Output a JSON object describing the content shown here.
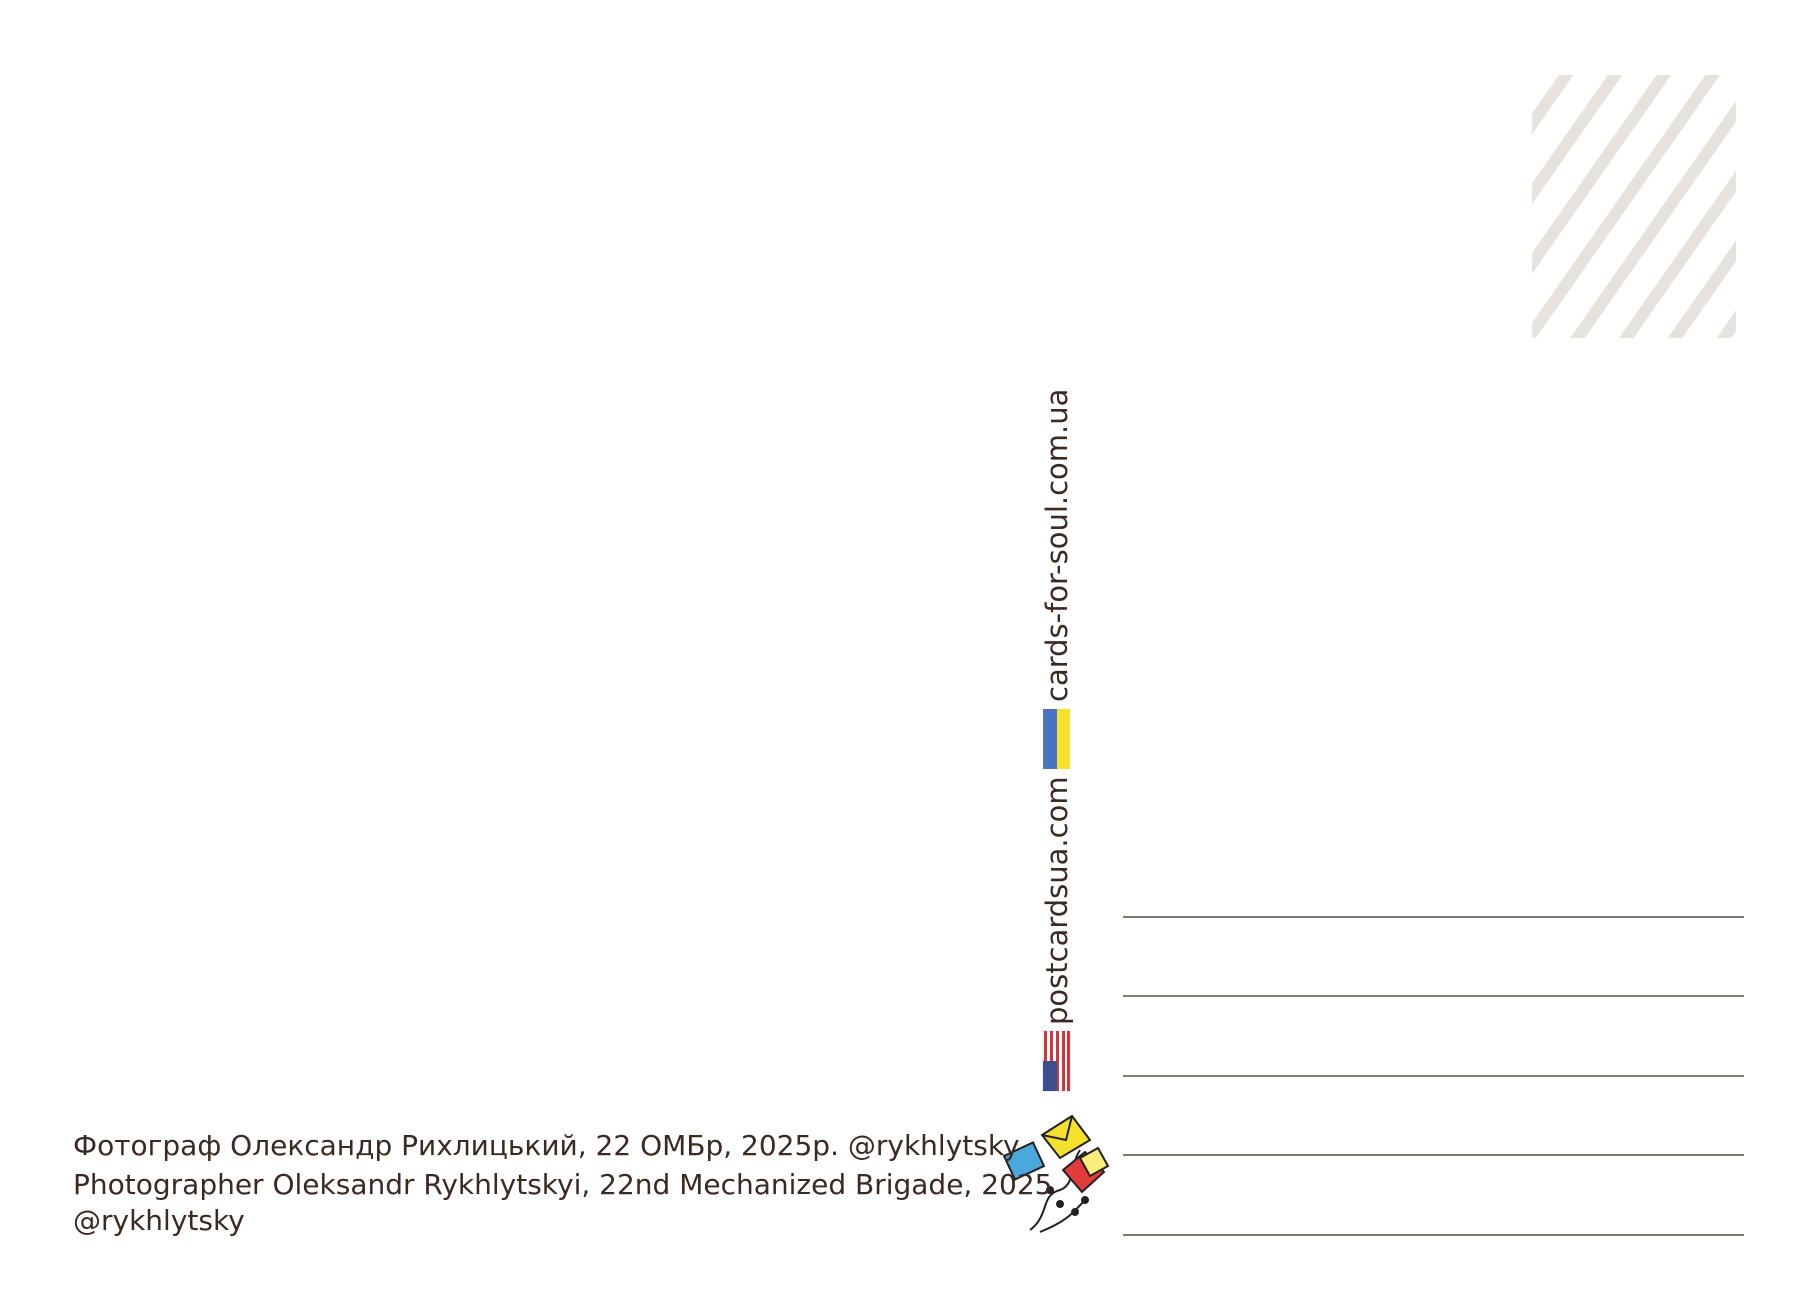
{
  "credits": [
    "Фотограф Олександр Рихлицький, 22 ОМБр, 2025р. @rykhlytsky",
    "Photographer Oleksandr Rykhlytskyi, 22nd Mechanized Brigade, 2025",
    "@rykhlytsky"
  ],
  "websites": [
    "cards-for-soul.com.ua",
    "postcardsua.com"
  ]
}
